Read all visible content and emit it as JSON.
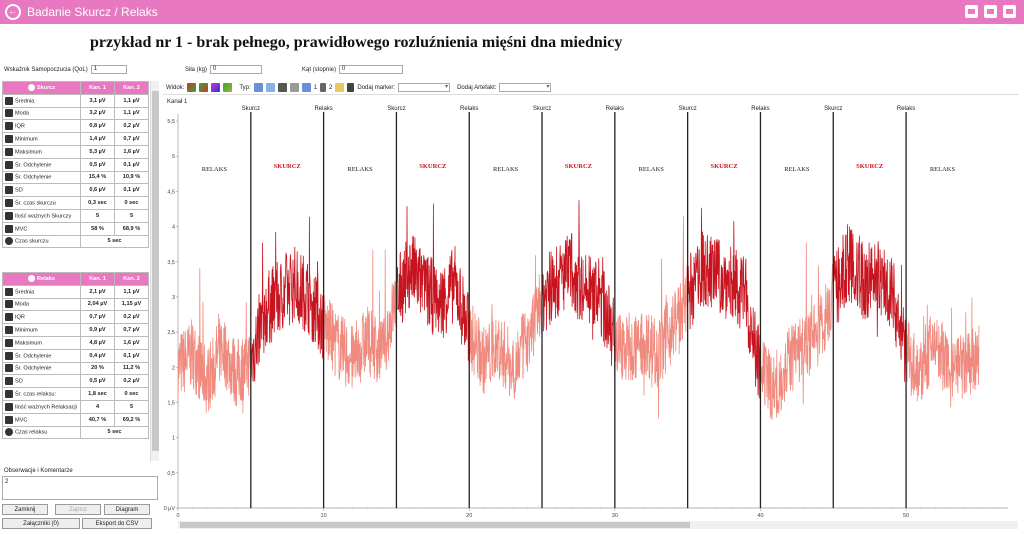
{
  "app": {
    "title": "Badanie Skurcz / Relaks"
  },
  "heading": "przykład nr 1 - brak pełnego, prawidłowego rozluźnienia mięśni dna miednicy",
  "fields": {
    "qol_label": "Wskaźnik Samopoczucia (QoL)",
    "qol_value": "1",
    "force_label": "Siła (kg)",
    "force_value": "0",
    "angle_label": "Kąt (stopnie)",
    "angle_value": "0"
  },
  "skurcz_table": {
    "headers": [
      "Skurcz",
      "Kan. 1",
      "Kan. 2"
    ],
    "rows": [
      {
        "label": "Średnia",
        "k1": "3,1 µV",
        "k2": "1,1 µV"
      },
      {
        "label": "Moda",
        "k1": "3,2 µV",
        "k2": "1,1 µV"
      },
      {
        "label": "IQR",
        "k1": "0,8 µV",
        "k2": "0,2 µV"
      },
      {
        "label": "Minimum",
        "k1": "1,4 µV",
        "k2": "0,7 µV"
      },
      {
        "label": "Maksimum",
        "k1": "5,3 µV",
        "k2": "1,6 µV"
      },
      {
        "label": "Śr. Odchylenie",
        "k1": "0,5 µV",
        "k2": "0,1 µV"
      },
      {
        "label": "Śr. Odchylenie",
        "k1": "15,4 %",
        "k2": "10,9 %"
      },
      {
        "label": "SD",
        "k1": "0,6 µV",
        "k2": "0,1 µV"
      },
      {
        "label": "Śr. czas skurczu",
        "k1": "0,3 sec",
        "k2": "0 sec"
      },
      {
        "label": "Ilość ważnych Skurczy",
        "k1": "5",
        "k2": "5"
      },
      {
        "label": "MVC",
        "k1": "58 %",
        "k2": "68,9 %"
      }
    ],
    "time_label": "Czas skurczu",
    "time_value": "5 sec"
  },
  "relaks_table": {
    "headers": [
      "Relaks",
      "Kan. 1",
      "Kan. 2"
    ],
    "rows": [
      {
        "label": "Średnia",
        "k1": "2,1 µV",
        "k2": "1,1 µV"
      },
      {
        "label": "Moda",
        "k1": "2,04 µV",
        "k2": "1,15 µV"
      },
      {
        "label": "IQR",
        "k1": "0,7 µV",
        "k2": "0,2 µV"
      },
      {
        "label": "Minimum",
        "k1": "0,9 µV",
        "k2": "0,7 µV"
      },
      {
        "label": "Maksimum",
        "k1": "4,8 µV",
        "k2": "1,6 µV"
      },
      {
        "label": "Śr. Odchylenie",
        "k1": "0,4 µV",
        "k2": "0,1 µV"
      },
      {
        "label": "Śr. Odchylenie",
        "k1": "20 %",
        "k2": "11,2 %"
      },
      {
        "label": "SD",
        "k1": "0,5 µV",
        "k2": "0,2 µV"
      },
      {
        "label": "Śr. czas relaksu:",
        "k1": "1,8 sec",
        "k2": "0 sec"
      },
      {
        "label": "Ilość ważnych Relaksacji",
        "k1": "4",
        "k2": "5"
      },
      {
        "label": "MVC",
        "k1": "40,7 %",
        "k2": "69,2 %"
      }
    ],
    "time_label": "Czas relaksu",
    "time_value": "5 sec"
  },
  "observations": {
    "label": "Obserwacje i Komentarze",
    "value": "2"
  },
  "buttons": {
    "close": "Zamknij",
    "save": "Zapisz",
    "diagram": "Diagram",
    "attachments": "Załączniki (0)",
    "export": "Eksport do CSV"
  },
  "toolbar": {
    "view": "Widok:",
    "type": "Typ:",
    "ch1": "1",
    "ch2": "2",
    "add_marker": "Dodaj marker:",
    "add_artifact": "Dodaj Artefakt:"
  },
  "chart_data": {
    "type": "line",
    "channel_label": "Kanał 1",
    "x_ticks": [
      "0",
      "10",
      "20",
      "30",
      "40",
      "50"
    ],
    "y_ticks": [
      "0 µV",
      "0,5",
      "1",
      "1,5",
      "2",
      "2,5",
      "3",
      "3,5",
      "4",
      "4,5",
      "5",
      "5,5"
    ],
    "xlim": [
      0,
      57
    ],
    "ylim": [
      0,
      5.6
    ],
    "colors": {
      "relaks": "#f08a7e",
      "skurcz": "#c8141e",
      "marker": "#222222",
      "relaks_label": "#222222",
      "skurcz_label": "#c8141e"
    },
    "markers": [
      {
        "x": 5,
        "label": "Skurcz"
      },
      {
        "x": 10,
        "label": "Relaks"
      },
      {
        "x": 15,
        "label": "Skurcz"
      },
      {
        "x": 20,
        "label": "Relaks"
      },
      {
        "x": 25,
        "label": "Skurcz"
      },
      {
        "x": 30,
        "label": "Relaks"
      },
      {
        "x": 35,
        "label": "Skurcz"
      },
      {
        "x": 40,
        "label": "Relaks"
      },
      {
        "x": 45,
        "label": "Skurcz"
      },
      {
        "x": 50,
        "label": "Relaks"
      }
    ],
    "phases": [
      {
        "label": "RELAKS",
        "start": 0,
        "end": 5,
        "kind": "relaks"
      },
      {
        "label": "SKURCZ",
        "start": 5,
        "end": 10,
        "kind": "skurcz"
      },
      {
        "label": "RELAKS",
        "start": 10,
        "end": 15,
        "kind": "relaks"
      },
      {
        "label": "SKURCZ",
        "start": 15,
        "end": 20,
        "kind": "skurcz"
      },
      {
        "label": "RELAKS",
        "start": 20,
        "end": 25,
        "kind": "relaks"
      },
      {
        "label": "SKURCZ",
        "start": 25,
        "end": 30,
        "kind": "skurcz"
      },
      {
        "label": "RELAKS",
        "start": 30,
        "end": 35,
        "kind": "relaks"
      },
      {
        "label": "SKURCZ",
        "start": 35,
        "end": 40,
        "kind": "skurcz"
      },
      {
        "label": "RELAKS",
        "start": 40,
        "end": 45,
        "kind": "relaks"
      },
      {
        "label": "SKURCZ",
        "start": 45,
        "end": 50,
        "kind": "skurcz"
      },
      {
        "label": "RELAKS",
        "start": 50,
        "end": 55,
        "kind": "relaks"
      }
    ],
    "series": [
      {
        "x": [
          0,
          1,
          2,
          3,
          4,
          5,
          6,
          7,
          8,
          9,
          10,
          11,
          12,
          13,
          14,
          15,
          16,
          17,
          18,
          19,
          20,
          21,
          22,
          23,
          24,
          25,
          26,
          27,
          28,
          29,
          30,
          31,
          32,
          33,
          34,
          35,
          36,
          37,
          38,
          39,
          40,
          41,
          42,
          43,
          44,
          45,
          46,
          47,
          48,
          49,
          50,
          51,
          52,
          53,
          54,
          55
        ],
        "values": [
          2.0,
          2.2,
          1.8,
          2.3,
          1.9,
          2.1,
          2.8,
          3.0,
          3.2,
          3.0,
          2.6,
          2.3,
          2.1,
          2.4,
          2.2,
          3.0,
          3.4,
          3.1,
          2.9,
          3.2,
          2.5,
          2.1,
          2.3,
          2.0,
          2.4,
          3.0,
          3.2,
          3.4,
          3.1,
          3.0,
          2.4,
          2.2,
          2.4,
          2.2,
          2.6,
          3.0,
          3.4,
          3.3,
          3.2,
          3.0,
          1.9,
          1.7,
          2.1,
          2.3,
          2.5,
          3.0,
          3.5,
          3.2,
          3.3,
          3.1,
          2.2,
          1.9,
          2.4,
          1.9,
          2.0,
          2.1
        ]
      }
    ]
  }
}
